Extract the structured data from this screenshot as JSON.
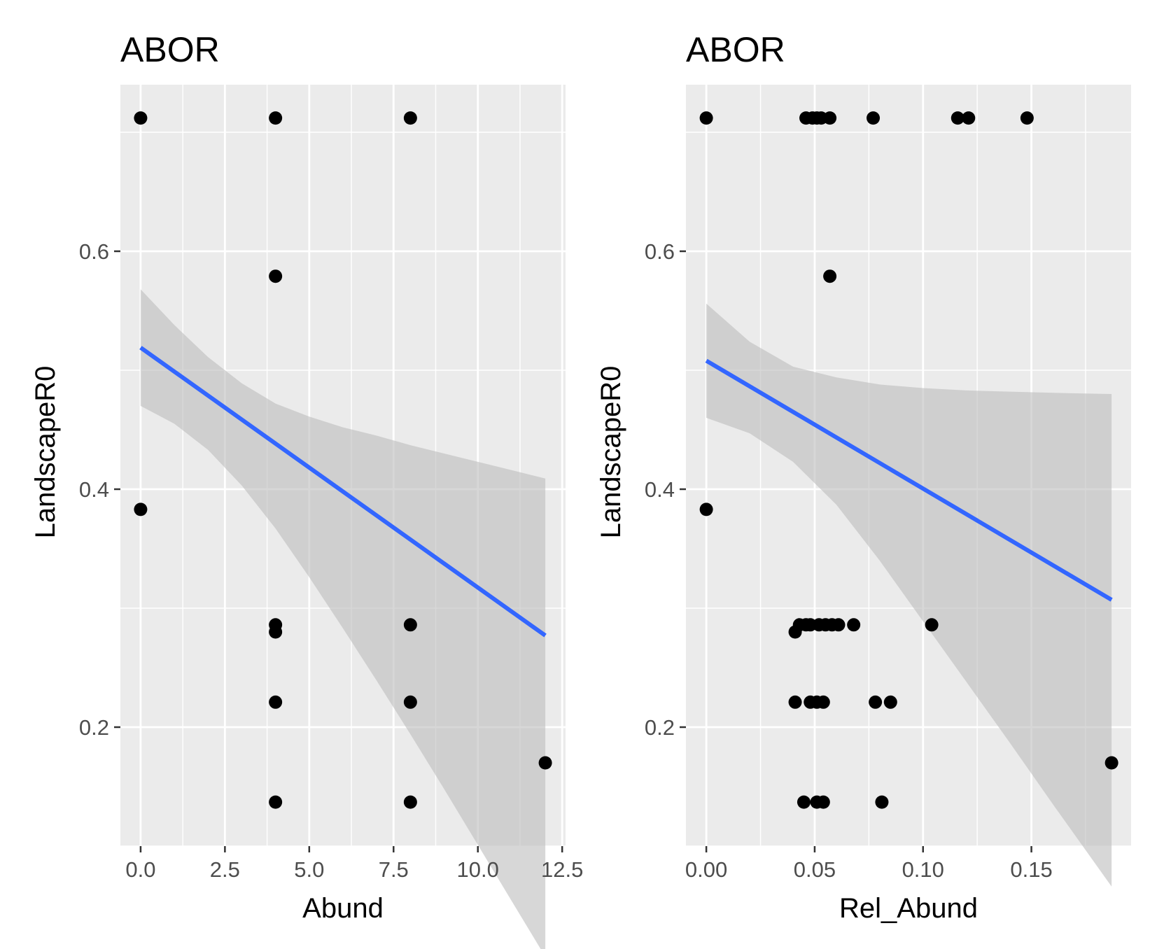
{
  "chart_data": [
    {
      "type": "scatter",
      "title": "ABOR",
      "xlabel": "Abund",
      "ylabel": "LandscapeR0",
      "xlim": [
        -0.6,
        12.6
      ],
      "ylim": [
        0.1,
        0.74
      ],
      "x_ticks": [
        0,
        2.5,
        5,
        7.5,
        10,
        12.5
      ],
      "x_tick_labels": [
        "0.0",
        "2.5",
        "5.0",
        "7.5",
        "10.0",
        "12.5"
      ],
      "y_ticks": [
        0.2,
        0.4,
        0.6
      ],
      "y_tick_labels": [
        "0.2",
        "0.4",
        "0.6"
      ],
      "grid": true,
      "points": [
        {
          "x": 0,
          "y": 0.712
        },
        {
          "x": 4,
          "y": 0.712
        },
        {
          "x": 8,
          "y": 0.712
        },
        {
          "x": 4,
          "y": 0.579
        },
        {
          "x": 0,
          "y": 0.383
        },
        {
          "x": 4,
          "y": 0.286
        },
        {
          "x": 4,
          "y": 0.28
        },
        {
          "x": 8,
          "y": 0.286
        },
        {
          "x": 4,
          "y": 0.221
        },
        {
          "x": 8,
          "y": 0.221
        },
        {
          "x": 12,
          "y": 0.17
        },
        {
          "x": 4,
          "y": 0.137
        },
        {
          "x": 8,
          "y": 0.137
        }
      ],
      "fit_line": {
        "x": [
          0,
          12
        ],
        "y": [
          0.519,
          0.277
        ]
      },
      "ribbon": {
        "x": [
          0,
          1,
          2,
          3,
          4,
          5,
          6,
          7,
          8,
          9,
          10,
          11,
          12
        ],
        "lower": [
          0.47,
          0.455,
          0.433,
          0.403,
          0.367,
          0.326,
          0.283,
          0.239,
          0.194,
          0.148,
          0.101,
          0.054,
          0.007
        ],
        "upper": [
          0.568,
          0.538,
          0.511,
          0.489,
          0.472,
          0.461,
          0.452,
          0.445,
          0.437,
          0.43,
          0.423,
          0.416,
          0.409
        ]
      },
      "line_color": "#3366ff",
      "ribbon_color": "#bfbfbf",
      "point_color": "#000000",
      "panel_bg": "#ebebeb"
    },
    {
      "type": "scatter",
      "title": "ABOR",
      "xlabel": "Rel_Abund",
      "ylabel": "LandscapeR0",
      "xlim": [
        -0.0094,
        0.196
      ],
      "ylim": [
        0.1,
        0.74
      ],
      "x_ticks": [
        0,
        0.05,
        0.1,
        0.15
      ],
      "x_tick_labels": [
        "0.00",
        "0.05",
        "0.10",
        "0.15"
      ],
      "y_ticks": [
        0.2,
        0.4,
        0.6
      ],
      "y_tick_labels": [
        "0.2",
        "0.4",
        "0.6"
      ],
      "grid": true,
      "points": [
        {
          "x": 0,
          "y": 0.712
        },
        {
          "x": 0.046,
          "y": 0.712
        },
        {
          "x": 0.049,
          "y": 0.712
        },
        {
          "x": 0.051,
          "y": 0.712
        },
        {
          "x": 0.053,
          "y": 0.712
        },
        {
          "x": 0.057,
          "y": 0.712
        },
        {
          "x": 0.077,
          "y": 0.712
        },
        {
          "x": 0.116,
          "y": 0.712
        },
        {
          "x": 0.121,
          "y": 0.712
        },
        {
          "x": 0.148,
          "y": 0.712
        },
        {
          "x": 0.057,
          "y": 0.579
        },
        {
          "x": 0,
          "y": 0.383
        },
        {
          "x": 0.043,
          "y": 0.286
        },
        {
          "x": 0.046,
          "y": 0.286
        },
        {
          "x": 0.048,
          "y": 0.286
        },
        {
          "x": 0.052,
          "y": 0.286
        },
        {
          "x": 0.055,
          "y": 0.286
        },
        {
          "x": 0.058,
          "y": 0.286
        },
        {
          "x": 0.061,
          "y": 0.286
        },
        {
          "x": 0.068,
          "y": 0.286
        },
        {
          "x": 0.104,
          "y": 0.286
        },
        {
          "x": 0.041,
          "y": 0.28
        },
        {
          "x": 0.041,
          "y": 0.221
        },
        {
          "x": 0.048,
          "y": 0.221
        },
        {
          "x": 0.051,
          "y": 0.221
        },
        {
          "x": 0.054,
          "y": 0.221
        },
        {
          "x": 0.078,
          "y": 0.221
        },
        {
          "x": 0.085,
          "y": 0.221
        },
        {
          "x": 0.187,
          "y": 0.17
        },
        {
          "x": 0.045,
          "y": 0.137
        },
        {
          "x": 0.051,
          "y": 0.137
        },
        {
          "x": 0.054,
          "y": 0.137
        },
        {
          "x": 0.081,
          "y": 0.137
        }
      ],
      "fit_line": {
        "x": [
          0,
          0.187
        ],
        "y": [
          0.508,
          0.307
        ]
      },
      "ribbon": {
        "x": [
          0,
          0.02,
          0.04,
          0.06,
          0.08,
          0.1,
          0.12,
          0.14,
          0.16,
          0.187
        ],
        "lower": [
          0.46,
          0.447,
          0.423,
          0.387,
          0.34,
          0.289,
          0.238,
          0.187,
          0.135,
          0.066
        ],
        "upper": [
          0.556,
          0.524,
          0.503,
          0.494,
          0.488,
          0.485,
          0.483,
          0.482,
          0.481,
          0.48
        ]
      },
      "line_color": "#3366ff",
      "ribbon_color": "#bfbfbf",
      "point_color": "#000000",
      "panel_bg": "#ebebeb"
    }
  ]
}
